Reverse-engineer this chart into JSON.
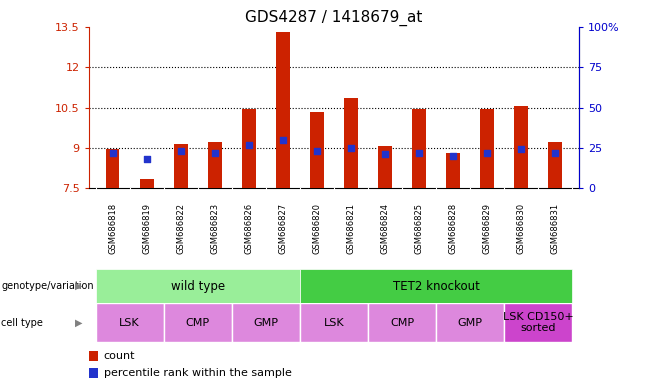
{
  "title": "GDS4287 / 1418679_at",
  "samples": [
    "GSM686818",
    "GSM686819",
    "GSM686822",
    "GSM686823",
    "GSM686826",
    "GSM686827",
    "GSM686820",
    "GSM686821",
    "GSM686824",
    "GSM686825",
    "GSM686828",
    "GSM686829",
    "GSM686830",
    "GSM686831"
  ],
  "count_values": [
    8.95,
    7.85,
    9.15,
    9.2,
    10.45,
    13.3,
    10.35,
    10.85,
    9.05,
    10.45,
    8.82,
    10.45,
    10.55,
    9.2
  ],
  "percentile_values": [
    22,
    18,
    23,
    22,
    27,
    30,
    23,
    25,
    21,
    22,
    20,
    22,
    24,
    22
  ],
  "ylim_left": [
    7.5,
    13.5
  ],
  "ylim_right": [
    0,
    100
  ],
  "yticks_left": [
    7.5,
    9.0,
    10.5,
    12.0,
    13.5
  ],
  "yticks_right": [
    0,
    25,
    50,
    75,
    100
  ],
  "ytick_labels_left": [
    "7.5",
    "9",
    "10.5",
    "12",
    "13.5"
  ],
  "ytick_labels_right": [
    "0",
    "25",
    "50",
    "75",
    "100%"
  ],
  "hlines": [
    9.0,
    10.5,
    12.0
  ],
  "bar_color": "#cc2200",
  "dot_color": "#2233cc",
  "bar_width": 0.4,
  "bar_bottom": 7.5,
  "genotype_groups": [
    {
      "label": "wild type",
      "start": 0,
      "end": 6,
      "color": "#99ee99"
    },
    {
      "label": "TET2 knockout",
      "start": 6,
      "end": 14,
      "color": "#44cc44"
    }
  ],
  "cell_type_groups": [
    {
      "label": "LSK",
      "start": 0,
      "end": 2,
      "color": "#dd88dd"
    },
    {
      "label": "CMP",
      "start": 2,
      "end": 4,
      "color": "#dd88dd"
    },
    {
      "label": "GMP",
      "start": 4,
      "end": 6,
      "color": "#dd88dd"
    },
    {
      "label": "LSK",
      "start": 6,
      "end": 8,
      "color": "#dd88dd"
    },
    {
      "label": "CMP",
      "start": 8,
      "end": 10,
      "color": "#dd88dd"
    },
    {
      "label": "GMP",
      "start": 10,
      "end": 12,
      "color": "#dd88dd"
    },
    {
      "label": "LSK CD150+\nsorted",
      "start": 12,
      "end": 14,
      "color": "#cc44cc"
    }
  ],
  "legend_count_color": "#cc2200",
  "legend_pct_color": "#2233cc",
  "bg_color": "#ffffff",
  "tick_label_color_left": "#cc2200",
  "tick_label_color_right": "#0000cc",
  "xtick_bg_color": "#cccccc"
}
